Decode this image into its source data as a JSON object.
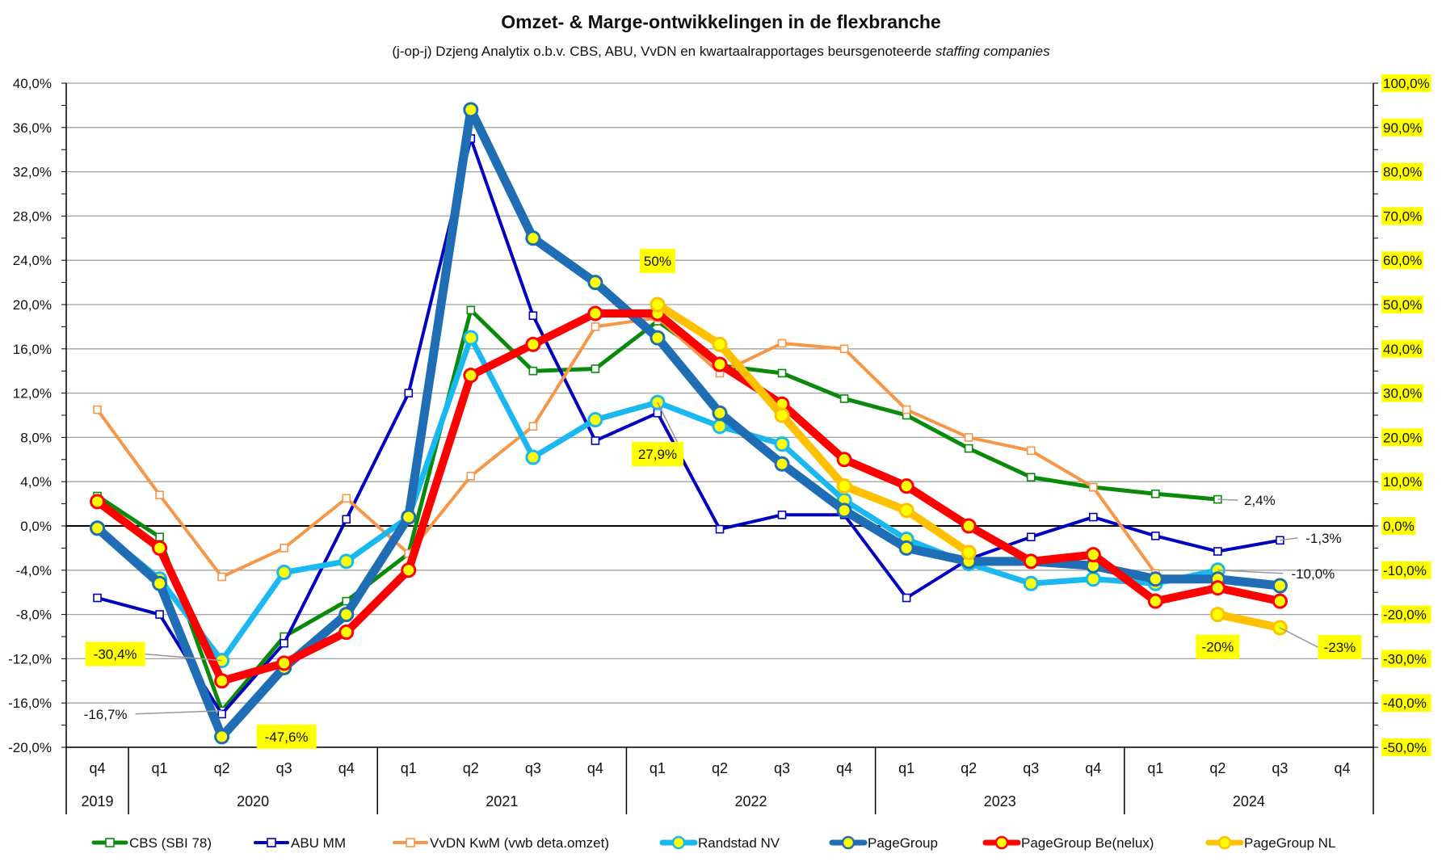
{
  "chart_data": {
    "type": "line",
    "title": "Omzet- & Marge-ontwikkelingen in de flexbranche",
    "subtitle_main": "(j-op-j) Dzjeng Analytix o.b.v. CBS, ABU,  VvDN en kwartaalrapportages  beursgenoteerde ",
    "subtitle_italic": "staffing companies",
    "categories": [
      "q4",
      "q1",
      "q2",
      "q3",
      "q4",
      "q1",
      "q2",
      "q3",
      "q4",
      "q1",
      "q2",
      "q3",
      "q4",
      "q1",
      "q2",
      "q3",
      "q4",
      "q1",
      "q2",
      "q3",
      "q4"
    ],
    "years": [
      {
        "label": "2019",
        "start": 0,
        "end": 0
      },
      {
        "label": "2020",
        "start": 1,
        "end": 4
      },
      {
        "label": "2021",
        "start": 5,
        "end": 8
      },
      {
        "label": "2022",
        "start": 9,
        "end": 12
      },
      {
        "label": "2023",
        "start": 13,
        "end": 16
      },
      {
        "label": "2024",
        "start": 17,
        "end": 20
      }
    ],
    "left_axis": {
      "min": -20,
      "max": 40,
      "step": 4,
      "ticks": [
        "40,0%",
        "36,0%",
        "32,0%",
        "28,0%",
        "24,0%",
        "20,0%",
        "16,0%",
        "12,0%",
        "8,0%",
        "4,0%",
        "0,0%",
        "-4,0%",
        "-8,0%",
        "-12,0%",
        "-16,0%",
        "-20,0%"
      ]
    },
    "right_axis": {
      "min": -50,
      "max": 100,
      "step": 10,
      "highlight": "#ffff00",
      "ticks": [
        "100,0%",
        "90,0%",
        "80,0%",
        "70,0%",
        "60,0%",
        "50,0%",
        "40,0%",
        "30,0%",
        "20,0%",
        "10,0%",
        "0,0%",
        "-10,0%",
        "-20,0%",
        "-30,0%",
        "-40,0%",
        "-50,0%"
      ]
    },
    "grid": true,
    "legend_position": "bottom",
    "series": [
      {
        "name": "CBS (SBI 78)",
        "axis": "left",
        "color": "#0a8a0a",
        "width": 5,
        "marker": "square",
        "values": [
          2.7,
          -1.0,
          -16.7,
          -10.0,
          -6.8,
          -2.5,
          19.5,
          14.0,
          14.2,
          18.5,
          14.5,
          13.8,
          11.5,
          10.0,
          7.0,
          4.4,
          3.5,
          2.9,
          2.4,
          null,
          null
        ]
      },
      {
        "name": "ABU MM",
        "axis": "left",
        "color": "#0000c0",
        "width": 4,
        "marker": "square",
        "values": [
          -6.5,
          -8.0,
          -17.0,
          -10.6,
          0.6,
          12.0,
          35.0,
          19.0,
          7.7,
          10.2,
          -0.3,
          1.0,
          1.0,
          -6.5,
          -3.0,
          -1.0,
          0.8,
          -0.9,
          -2.3,
          -1.3,
          null
        ]
      },
      {
        "name": "VvDN KwM (vwb deta.omzet)",
        "axis": "left",
        "color": "#f79646",
        "width": 4,
        "marker": "square",
        "values": [
          10.5,
          2.8,
          -4.6,
          -2.0,
          2.5,
          -2.5,
          4.5,
          9.0,
          18.0,
          18.8,
          13.8,
          16.5,
          16.0,
          10.5,
          8.0,
          6.8,
          3.5,
          -4.3,
          null,
          null,
          null
        ]
      },
      {
        "name": "Randstad NV",
        "axis": "right",
        "color": "#1ab8f0",
        "width": 7,
        "marker": "circle",
        "values": [
          -0.5,
          -12.0,
          -30.4,
          -10.5,
          -8.0,
          2.0,
          42.5,
          15.5,
          24.0,
          27.9,
          22.5,
          18.5,
          5.8,
          -3.0,
          -8.5,
          -13.0,
          -12.0,
          -13.0,
          -10.0,
          null,
          null
        ]
      },
      {
        "name": "PageGroup",
        "axis": "right",
        "color": "#1f6db5",
        "width": 11,
        "marker": "circle",
        "values": [
          -0.5,
          -13.0,
          -47.6,
          -32.0,
          -20.0,
          2.0,
          94.0,
          65.0,
          55.0,
          42.5,
          25.5,
          14.0,
          3.5,
          -5.0,
          -8.0,
          -8.0,
          -9.0,
          -12.0,
          -12.0,
          -13.5,
          null
        ]
      },
      {
        "name": "PageGroup Be(nelux)",
        "axis": "right",
        "color": "#ff0000",
        "width": 10,
        "marker": "circle",
        "values": [
          5.5,
          -5.0,
          -35.0,
          -31.0,
          -24.0,
          -10.0,
          34.0,
          41.0,
          48.0,
          48.0,
          36.5,
          27.5,
          15.0,
          9.0,
          0.0,
          -8.0,
          -6.5,
          -17.0,
          -14.0,
          -17.0,
          null
        ]
      },
      {
        "name": "PageGroup NL",
        "axis": "right",
        "color": "#ffc000",
        "width": 10,
        "marker": "circle",
        "values": [
          null,
          null,
          null,
          null,
          null,
          null,
          null,
          null,
          null,
          50.0,
          41.0,
          25.0,
          9.0,
          3.5,
          -6.0,
          null,
          null,
          null,
          -20.0,
          -23.0,
          null
        ]
      }
    ],
    "annotations": [
      {
        "text": "50%",
        "highlight": true,
        "series": "PageGroup NL",
        "point": 9
      },
      {
        "text": "27,9%",
        "highlight": true,
        "series": "Randstad NV",
        "point": 9
      },
      {
        "text": "-30,4%",
        "highlight": true,
        "series": "Randstad NV",
        "point": 2
      },
      {
        "text": "-16,7%",
        "highlight": false,
        "series": "CBS (SBI 78)",
        "point": 2
      },
      {
        "text": "-47,6%",
        "highlight": true,
        "series": "PageGroup",
        "point": 2
      },
      {
        "text": "2,4%",
        "highlight": false,
        "series": "CBS (SBI 78)",
        "point": 18
      },
      {
        "text": "-1,3%",
        "highlight": false,
        "series": "ABU MM",
        "point": 19
      },
      {
        "text": "-10,0%",
        "highlight": false,
        "series": "Randstad NV",
        "point": 18
      },
      {
        "text": "-20%",
        "highlight": true,
        "series": "PageGroup NL",
        "point": 18
      },
      {
        "text": "-23%",
        "highlight": true,
        "series": "PageGroup NL",
        "point": 19
      }
    ]
  }
}
